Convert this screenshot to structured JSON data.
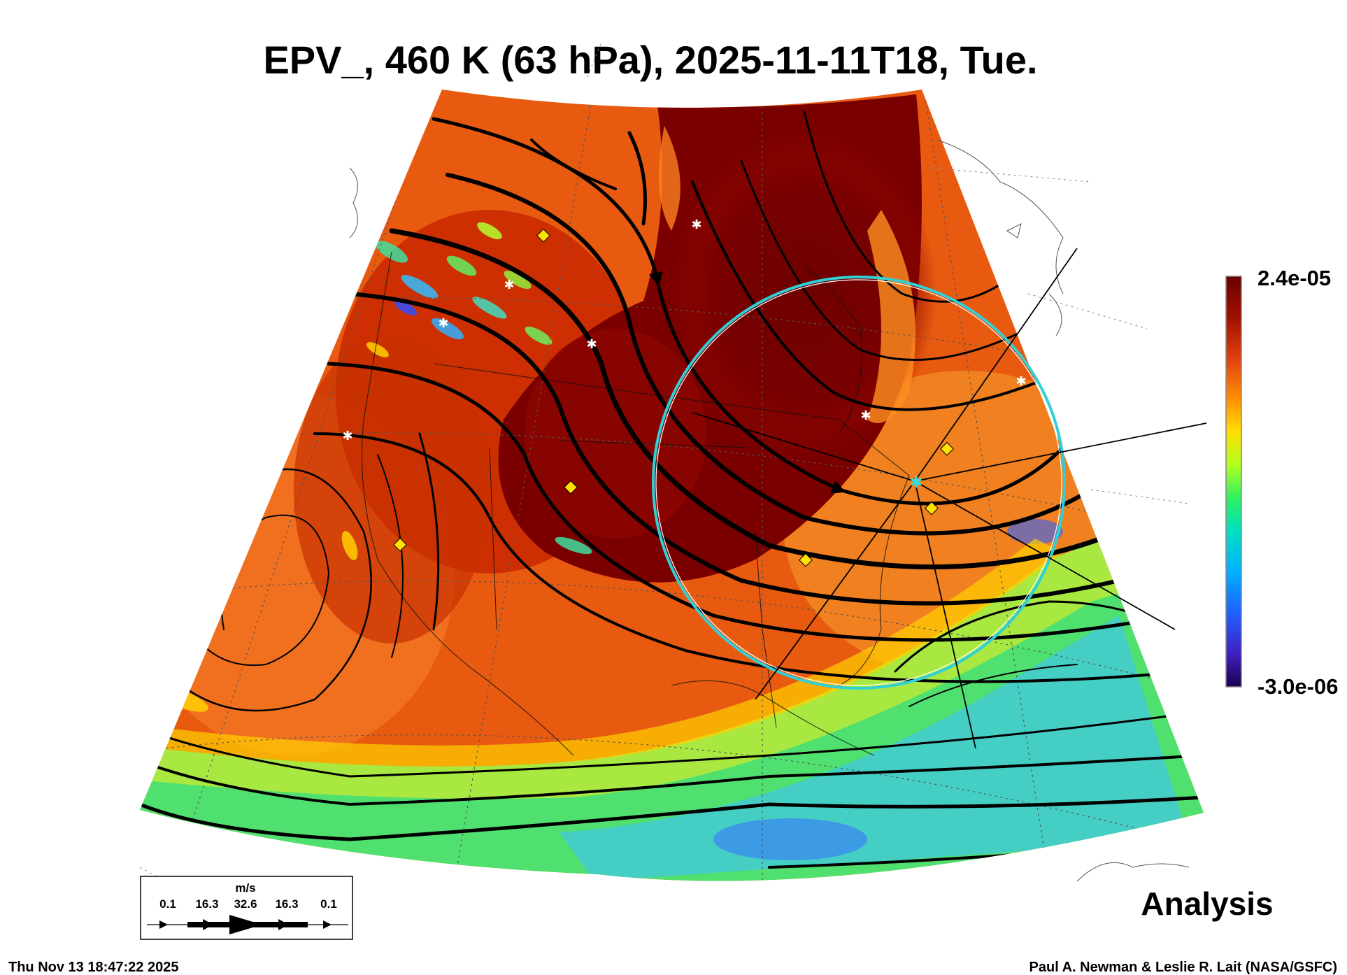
{
  "title": "EPV_, 460 K (63 hPa), 2025-11-11T18, Tue.",
  "colorbar": {
    "max_label": "2.4e-05",
    "min_label": "-3.0e-06",
    "max_value": 2.4e-05,
    "min_value": -3e-06,
    "colors": [
      "#7a0000",
      "#b01800",
      "#e04810",
      "#ff8a00",
      "#ffd400",
      "#b8ff20",
      "#40ff60",
      "#00e0c0",
      "#00a8ff",
      "#3050ff",
      "#4020d0",
      "#200060"
    ]
  },
  "wind_key": {
    "units": "m/s",
    "values": [
      "0.1",
      "16.3",
      "32.6",
      "16.3",
      "0.1"
    ]
  },
  "analysis_label": "Analysis",
  "footer": {
    "timestamp": "Thu Nov 13 18:47:22 2025",
    "credit": "Paul A. Newman & Leslie R. Lait (NASA/GSFC)"
  },
  "map": {
    "field_colors": {
      "high": "#7a0000",
      "mid_high": "#c02800",
      "mid": "#ff7a10",
      "low": "#90f040",
      "lowest": "#30d0ff"
    },
    "vortex_edge_color": "#30d0d8",
    "marker_color": "#ffe000"
  }
}
